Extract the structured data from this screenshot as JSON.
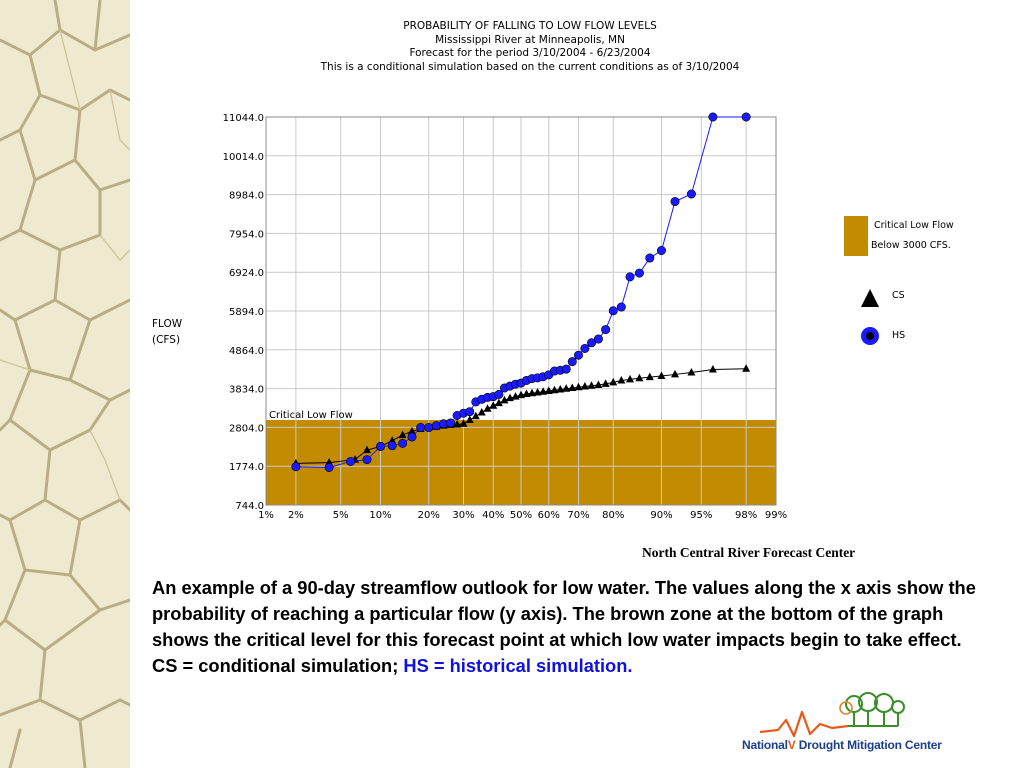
{
  "chart_data": {
    "type": "line",
    "title_lines": [
      "PROBABILITY OF FALLING TO LOW FLOW LEVELS",
      "Mississippi River at Minneapolis, MN",
      "Forecast for the period 3/10/2004 - 6/23/2004",
      "This is a conditional simulation based on the current conditions as of 3/10/2004"
    ],
    "ylabel_lines": [
      "FLOW",
      "(CFS)"
    ],
    "y_ticks": [
      "11044.0",
      "10014.0",
      "8984.0",
      "7954.0",
      "6924.0",
      "5894.0",
      "4864.0",
      "3834.0",
      "2804.0",
      "1774.0",
      "744.0"
    ],
    "x_ticks": [
      "1%",
      "2%",
      "5%",
      "10%",
      "20%",
      "30%",
      "40%",
      "50%",
      "60%",
      "70%",
      "80%",
      "90%",
      "95%",
      "98%",
      "99%"
    ],
    "ylim": [
      744.0,
      11044.0
    ],
    "x_scale": "normal-probability",
    "grid": true,
    "critical_zone": {
      "label": "Critical Low Flow",
      "threshold": 3000,
      "color": "#c28b00"
    },
    "series": [
      {
        "name": "CS",
        "marker": "triangle",
        "color": "#000000",
        "x": [
          2,
          4,
          6.5,
          8,
          10,
          12,
          14,
          16,
          18,
          20,
          22,
          24,
          26,
          28,
          30,
          32,
          34,
          36,
          38,
          40,
          42,
          44,
          46,
          48,
          50,
          52,
          54,
          56,
          58,
          60,
          62,
          64,
          66,
          68,
          70,
          72,
          74,
          76,
          78,
          80,
          82,
          84,
          86,
          88,
          90,
          92,
          94,
          96,
          98
        ],
        "y": [
          1850,
          1870,
          1950,
          2200,
          2300,
          2450,
          2600,
          2700,
          2760,
          2800,
          2820,
          2850,
          2870,
          2880,
          2900,
          3000,
          3100,
          3200,
          3300,
          3380,
          3450,
          3520,
          3580,
          3620,
          3660,
          3690,
          3710,
          3730,
          3750,
          3770,
          3790,
          3810,
          3830,
          3850,
          3870,
          3890,
          3910,
          3930,
          3960,
          4000,
          4050,
          4080,
          4110,
          4140,
          4170,
          4210,
          4260,
          4340,
          4360
        ]
      },
      {
        "name": "HS",
        "marker": "circle",
        "color": "#1a1aff",
        "x": [
          2,
          4,
          6,
          8,
          10,
          12,
          14,
          16,
          18,
          20,
          22,
          24,
          26,
          28,
          30,
          32,
          34,
          36,
          38,
          40,
          42,
          44,
          46,
          48,
          50,
          52,
          54,
          56,
          58,
          60,
          62,
          64,
          66,
          68,
          70,
          72,
          74,
          76,
          78,
          80,
          82,
          84,
          86,
          88,
          90,
          92,
          94,
          96,
          98
        ],
        "y": [
          1760,
          1740,
          1900,
          1950,
          2300,
          2320,
          2380,
          2550,
          2800,
          2800,
          2850,
          2900,
          2920,
          3120,
          3180,
          3220,
          3480,
          3550,
          3600,
          3620,
          3680,
          3850,
          3900,
          3950,
          3980,
          4050,
          4100,
          4120,
          4150,
          4200,
          4300,
          4320,
          4350,
          4550,
          4720,
          4900,
          5050,
          5150,
          5400,
          5900,
          6000,
          6800,
          6900,
          7300,
          7500,
          8800,
          9000,
          11044,
          11044
        ]
      }
    ],
    "legend": [
      {
        "label": "Critical Low Flow",
        "label2": "Below 3000 CFS.",
        "marker": "swatch"
      },
      {
        "label": "CS",
        "marker": "triangle"
      },
      {
        "label": "HS",
        "marker": "circle"
      }
    ]
  },
  "source_credit": "North Central River Forecast Center",
  "caption": {
    "main": "An example of a 90-day streamflow outlook for low water. The values along the x axis show the probability of reaching a particular flow (y axis). The brown zone at the bottom of the graph shows the critical level for this forecast point at which low water impacts begin to take effect.  CS = conditional simulation; ",
    "highlight": "HS = historical simulation."
  },
  "logo": {
    "word1": "National",
    "word2": "Drought Mitigation",
    "word3": "Center"
  },
  "colors": {
    "critical_zone": "#c28b00",
    "hs_series": "#1a1aff",
    "cs_series": "#000000",
    "highlight_text": "#1111dd",
    "texture_bg": "#efe9cf"
  }
}
